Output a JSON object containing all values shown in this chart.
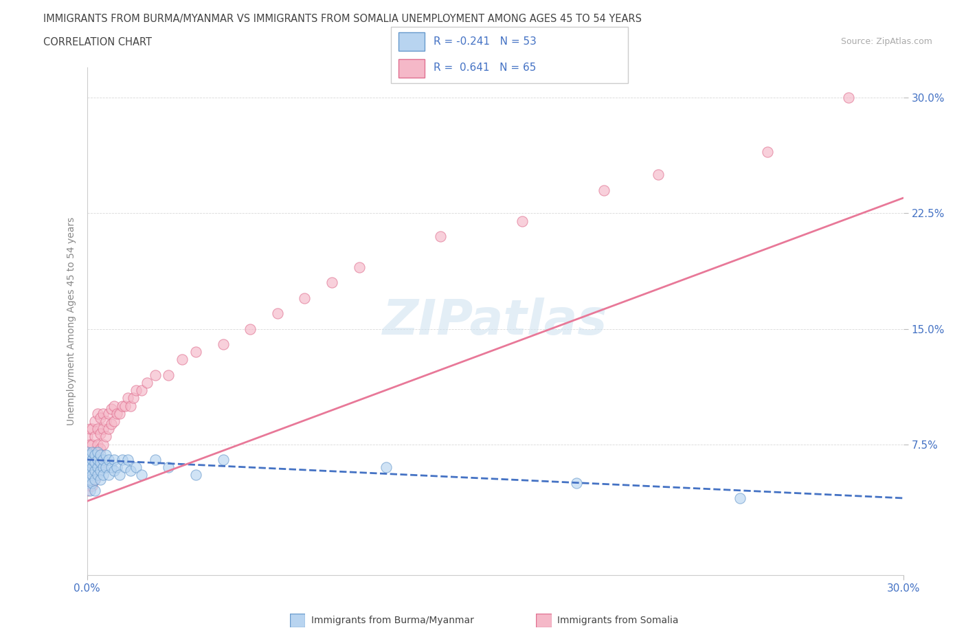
{
  "title_line1": "IMMIGRANTS FROM BURMA/MYANMAR VS IMMIGRANTS FROM SOMALIA UNEMPLOYMENT AMONG AGES 45 TO 54 YEARS",
  "title_line2": "CORRELATION CHART",
  "source_text": "Source: ZipAtlas.com",
  "xlabel_burma": "Immigrants from Burma/Myanmar",
  "xlabel_somalia": "Immigrants from Somalia",
  "ylabel": "Unemployment Among Ages 45 to 54 years",
  "xlim": [
    0.0,
    0.3
  ],
  "ylim": [
    -0.01,
    0.32
  ],
  "xtick_vals": [
    0.0,
    0.3
  ],
  "xtick_labels": [
    "0.0%",
    "30.0%"
  ],
  "ytick_vals": [
    0.075,
    0.15,
    0.225,
    0.3
  ],
  "ytick_labels": [
    "7.5%",
    "15.0%",
    "22.5%",
    "30.0%"
  ],
  "r_burma": -0.241,
  "n_burma": 53,
  "r_somalia": 0.641,
  "n_somalia": 65,
  "color_burma_fill": "#b8d4f0",
  "color_burma_edge": "#6699cc",
  "color_somalia_fill": "#f5b8c8",
  "color_somalia_edge": "#e07090",
  "color_burma_line": "#4472c4",
  "color_somalia_line": "#e87898",
  "color_axis_label": "#4472c4",
  "color_text_dark": "#404040",
  "color_grid": "#d8d8d8",
  "watermark": "ZIPatlas",
  "watermark_color": "#cce0f0",
  "burma_x": [
    0.0,
    0.0,
    0.0,
    0.0,
    0.0,
    0.001,
    0.001,
    0.001,
    0.001,
    0.001,
    0.002,
    0.002,
    0.002,
    0.002,
    0.002,
    0.003,
    0.003,
    0.003,
    0.003,
    0.003,
    0.004,
    0.004,
    0.004,
    0.004,
    0.005,
    0.005,
    0.005,
    0.005,
    0.006,
    0.006,
    0.006,
    0.007,
    0.007,
    0.008,
    0.008,
    0.009,
    0.01,
    0.01,
    0.011,
    0.012,
    0.013,
    0.014,
    0.015,
    0.016,
    0.018,
    0.02,
    0.025,
    0.03,
    0.04,
    0.05,
    0.11,
    0.18,
    0.24
  ],
  "burma_y": [
    0.06,
    0.055,
    0.065,
    0.05,
    0.07,
    0.058,
    0.063,
    0.052,
    0.068,
    0.045,
    0.06,
    0.055,
    0.065,
    0.05,
    0.07,
    0.058,
    0.063,
    0.052,
    0.068,
    0.045,
    0.06,
    0.055,
    0.065,
    0.07,
    0.058,
    0.063,
    0.052,
    0.068,
    0.06,
    0.055,
    0.065,
    0.06,
    0.068,
    0.055,
    0.065,
    0.06,
    0.065,
    0.058,
    0.06,
    0.055,
    0.065,
    0.06,
    0.065,
    0.058,
    0.06,
    0.055,
    0.065,
    0.06,
    0.055,
    0.065,
    0.06,
    0.05,
    0.04
  ],
  "somalia_x": [
    0.0,
    0.0,
    0.0,
    0.0,
    0.0,
    0.001,
    0.001,
    0.001,
    0.001,
    0.001,
    0.002,
    0.002,
    0.002,
    0.002,
    0.002,
    0.003,
    0.003,
    0.003,
    0.003,
    0.003,
    0.004,
    0.004,
    0.004,
    0.004,
    0.005,
    0.005,
    0.005,
    0.005,
    0.006,
    0.006,
    0.006,
    0.007,
    0.007,
    0.008,
    0.008,
    0.009,
    0.009,
    0.01,
    0.01,
    0.011,
    0.012,
    0.013,
    0.014,
    0.015,
    0.016,
    0.017,
    0.018,
    0.02,
    0.022,
    0.025,
    0.03,
    0.035,
    0.04,
    0.05,
    0.06,
    0.07,
    0.08,
    0.09,
    0.1,
    0.13,
    0.16,
    0.19,
    0.21,
    0.25,
    0.28
  ],
  "somalia_y": [
    0.06,
    0.07,
    0.05,
    0.08,
    0.045,
    0.065,
    0.075,
    0.055,
    0.085,
    0.048,
    0.065,
    0.075,
    0.055,
    0.085,
    0.048,
    0.07,
    0.08,
    0.06,
    0.09,
    0.052,
    0.075,
    0.085,
    0.065,
    0.095,
    0.072,
    0.082,
    0.062,
    0.092,
    0.075,
    0.085,
    0.095,
    0.08,
    0.09,
    0.085,
    0.095,
    0.088,
    0.098,
    0.09,
    0.1,
    0.095,
    0.095,
    0.1,
    0.1,
    0.105,
    0.1,
    0.105,
    0.11,
    0.11,
    0.115,
    0.12,
    0.12,
    0.13,
    0.135,
    0.14,
    0.15,
    0.16,
    0.17,
    0.18,
    0.19,
    0.21,
    0.22,
    0.24,
    0.25,
    0.265,
    0.3
  ],
  "burma_trend_x": [
    0.0,
    0.3
  ],
  "burma_trend_y": [
    0.065,
    0.04
  ],
  "somalia_trend_x": [
    0.0,
    0.3
  ],
  "somalia_trend_y": [
    0.038,
    0.235
  ]
}
